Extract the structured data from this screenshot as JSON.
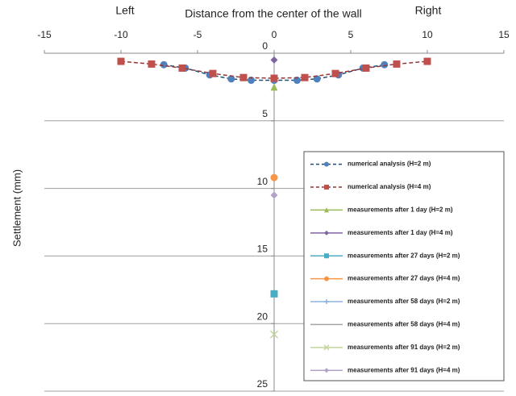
{
  "chart_data": {
    "type": "scatter",
    "title_left": "Left",
    "title": "Distance from the center of the wall",
    "title_right": "Right",
    "y_label": "Settlement (mm)",
    "xlim": [
      -15,
      15
    ],
    "xticks": [
      -15,
      -10,
      -5,
      0,
      5,
      10,
      15
    ],
    "ylim": [
      0,
      25
    ],
    "yticks": [
      0,
      5,
      10,
      15,
      20,
      25
    ],
    "y_inverted": true,
    "x_axis_position": "top",
    "grid": true,
    "series": [
      {
        "name": "numerical analysis (H=2 m)",
        "color": "#4f81bd",
        "line_color": "#1f4e79",
        "marker": "circle",
        "dashed": true,
        "x": [
          -7.2,
          -5.8,
          -4.2,
          -2.8,
          -1.5,
          0,
          1.5,
          2.8,
          4.2,
          5.8,
          7.2
        ],
        "values": [
          0.85,
          1.1,
          1.6,
          1.9,
          2.0,
          2.0,
          2.0,
          1.9,
          1.6,
          1.1,
          0.85
        ]
      },
      {
        "name": "numerical analysis (H=4 m)",
        "color": "#c0504d",
        "line_color": "#953735",
        "marker": "square",
        "dashed": true,
        "x": [
          -10,
          -8,
          -6,
          -4,
          -2,
          0,
          2,
          4,
          6,
          8,
          10
        ],
        "values": [
          0.6,
          0.8,
          1.1,
          1.5,
          1.8,
          1.85,
          1.8,
          1.5,
          1.1,
          0.8,
          0.6
        ]
      },
      {
        "name": "measurements after 1 day (H=2 m)",
        "color": "#9bbb59",
        "marker": "triangle",
        "x": [
          0
        ],
        "values": [
          2.5
        ]
      },
      {
        "name": "measurements after 1 day (H=4 m)",
        "color": "#8064a2",
        "marker": "diamond",
        "x": [
          0
        ],
        "values": [
          0.5
        ]
      },
      {
        "name": "measurements after 27 days (H=2 m)",
        "color": "#4bacc6",
        "marker": "square",
        "x": [
          0
        ],
        "values": [
          17.8
        ]
      },
      {
        "name": "measurements after 27 days (H=4 m)",
        "color": "#f79646",
        "marker": "circle",
        "x": [
          0
        ],
        "values": [
          9.2
        ]
      },
      {
        "name": "measurements after 58 days (H=2 m)",
        "color": "#8db3e2",
        "marker": "plus",
        "x": [],
        "values": []
      },
      {
        "name": "measurements after 58 days (H=4 m)",
        "color": "#a5a5a5",
        "marker": "none",
        "x": [],
        "values": []
      },
      {
        "name": "measurements after 91 days (H=2 m)",
        "color": "#c3d69b",
        "marker": "cross",
        "x": [
          0
        ],
        "values": [
          20.8
        ]
      },
      {
        "name": "measurements after 91 days (H=4 m)",
        "color": "#b3a2c7",
        "marker": "diamond",
        "x": [
          0
        ],
        "values": [
          10.5
        ]
      }
    ]
  }
}
